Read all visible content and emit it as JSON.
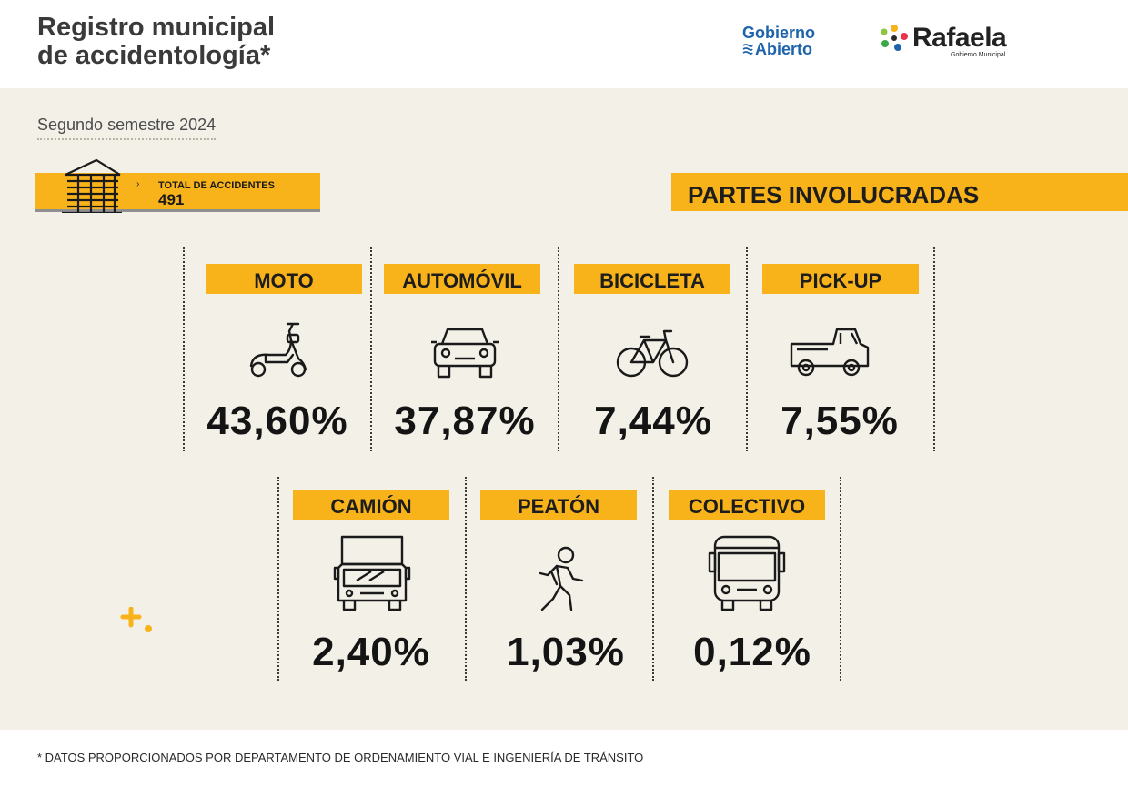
{
  "header": {
    "title": "Registro municipal\nde accidentología*",
    "logo_gobierno_line1": "Gobierno",
    "logo_gobierno_line2": "Abierto",
    "logo_rafaela_name": "Rafaela",
    "logo_rafaela_sub": "Gobierno Municipal"
  },
  "period": "Segundo semestre 2024",
  "total": {
    "label": "TOTAL DE ACCIDENTES",
    "value": "491"
  },
  "section_title": "PARTES INVOLUCRADAS",
  "categories": [
    {
      "label": "MOTO",
      "percent": "43,60%",
      "icon": "scooter-icon"
    },
    {
      "label": "AUTOMÓVIL",
      "percent": "37,87%",
      "icon": "car-icon"
    },
    {
      "label": "BICICLETA",
      "percent": "7,44%",
      "icon": "bicycle-icon"
    },
    {
      "label": "PICK-UP",
      "percent": "7,55%",
      "icon": "pickup-truck-icon"
    },
    {
      "label": "CAMIÓN",
      "percent": "2,40%",
      "icon": "truck-icon"
    },
    {
      "label": "PEATÓN",
      "percent": "1,03%",
      "icon": "pedestrian-icon"
    },
    {
      "label": "COLECTIVO",
      "percent": "0,12%",
      "icon": "bus-icon"
    }
  ],
  "footnote": "* DATOS PROPORCIONADOS POR DEPARTAMENTO DE ORDENAMIENTO VIAL E INGENIERÍA DE TRÁNSITO",
  "colors": {
    "accent": "#f9b31a",
    "background": "#f3f0e8",
    "brand_blue": "#1d64ad"
  }
}
